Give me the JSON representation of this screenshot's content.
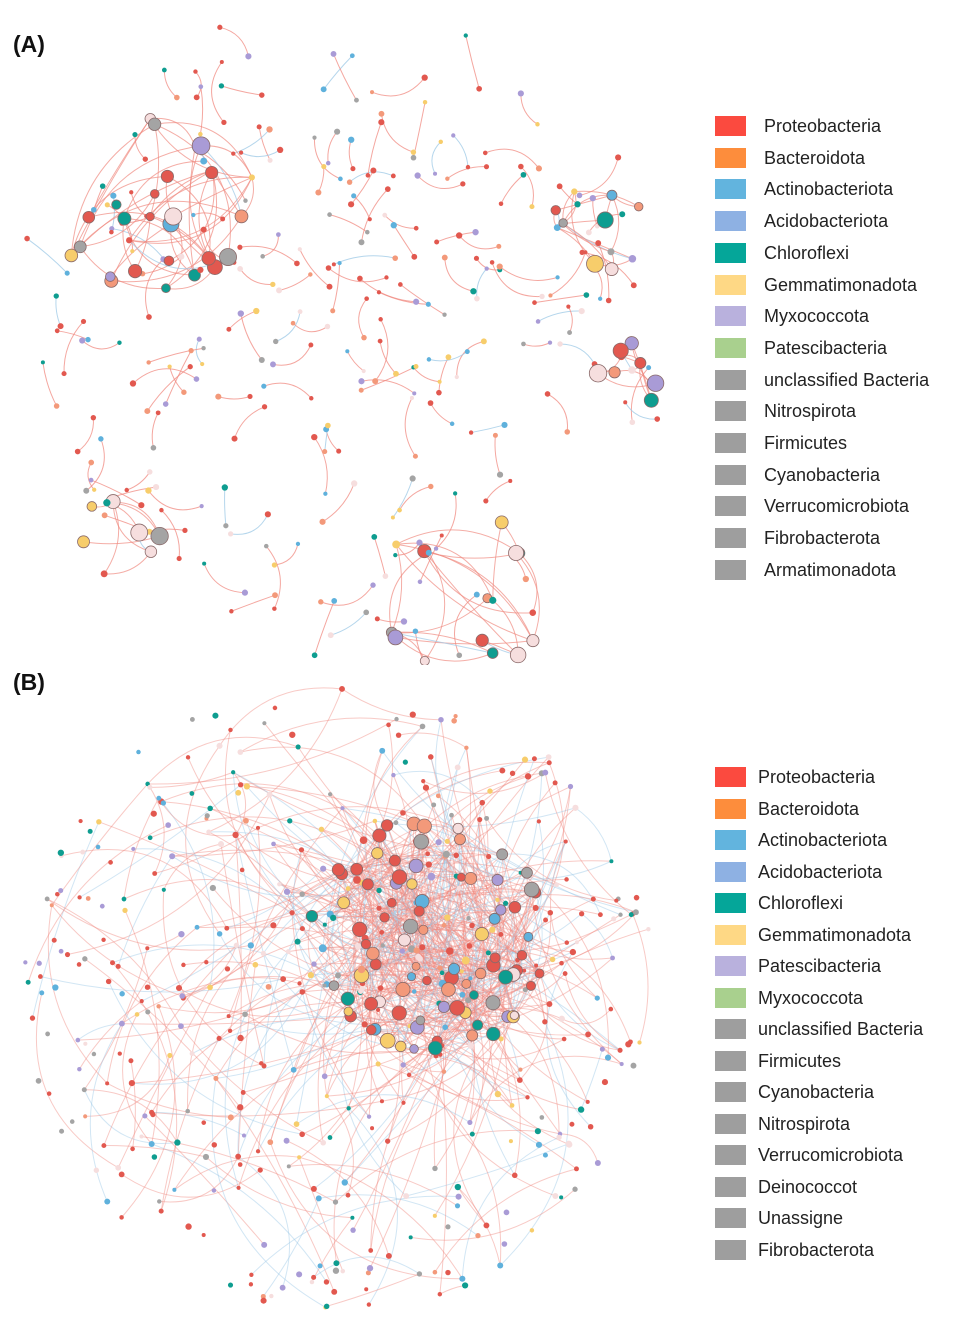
{
  "panels": [
    {
      "label": "(A)",
      "legend": [
        {
          "name": "Proteobacteria",
          "color": "#fb4a3f"
        },
        {
          "name": "Bacteroidota",
          "color": "#fd8d3c"
        },
        {
          "name": "Actinobacteriota",
          "color": "#62b4de"
        },
        {
          "name": "Acidobacteriota",
          "color": "#8eb1e3"
        },
        {
          "name": "Chloroflexi",
          "color": "#05a699"
        },
        {
          "name": "Gemmatimonadota",
          "color": "#fed885"
        },
        {
          "name": "Myxococcota",
          "color": "#b9b1dd"
        },
        {
          "name": "Patescibacteria",
          "color": "#a9d08e"
        },
        {
          "name": "unclassified Bacteria",
          "color": "#9e9e9e"
        },
        {
          "name": "Nitrospirota",
          "color": "#9e9e9e"
        },
        {
          "name": "Firmicutes",
          "color": "#9e9e9e"
        },
        {
          "name": "Cyanobacteria",
          "color": "#9e9e9e"
        },
        {
          "name": "Verrucomicrobiota",
          "color": "#9e9e9e"
        },
        {
          "name": "Fibrobacterota",
          "color": "#9e9e9e"
        },
        {
          "name": "Armatimonadota",
          "color": "#9e9e9e"
        }
      ]
    },
    {
      "label": "(B)",
      "legend": [
        {
          "name": "Proteobacteria",
          "color": "#fb4a3f"
        },
        {
          "name": "Bacteroidota",
          "color": "#fd8d3c"
        },
        {
          "name": "Actinobacteriota",
          "color": "#62b4de"
        },
        {
          "name": "Acidobacteriota",
          "color": "#8eb1e3"
        },
        {
          "name": "Chloroflexi",
          "color": "#05a699"
        },
        {
          "name": "Gemmatimonadota",
          "color": "#fed885"
        },
        {
          "name": "Patescibacteria",
          "color": "#b9b1dd"
        },
        {
          "name": "Myxococcota",
          "color": "#a9d08e"
        },
        {
          "name": "unclassified Bacteria",
          "color": "#9e9e9e"
        },
        {
          "name": "Firmicutes",
          "color": "#9e9e9e"
        },
        {
          "name": "Cyanobacteria",
          "color": "#9e9e9e"
        },
        {
          "name": "Nitrospirota",
          "color": "#9e9e9e"
        },
        {
          "name": "Verrucomicrobiota",
          "color": "#9e9e9e"
        },
        {
          "name": "Deinococcot",
          "color": "#9e9e9e"
        },
        {
          "name": "Unassigne",
          "color": "#9e9e9e"
        },
        {
          "name": "Fibrobacterota",
          "color": "#9e9e9e"
        }
      ]
    }
  ],
  "edge_colors": {
    "positive": "#f08a80",
    "negative": "#9cc8e6"
  }
}
